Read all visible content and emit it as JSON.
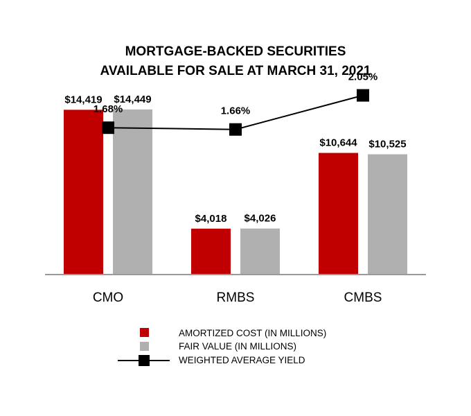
{
  "chart_data": {
    "type": "bar",
    "title": [
      "MORTGAGE-BACKED SECURITIES",
      "AVAILABLE FOR SALE AT MARCH 31, 2021"
    ],
    "categories": [
      "CMO",
      "RMBS",
      "CMBS"
    ],
    "series": [
      {
        "name": "AMORTIZED COST (IN MILLIONS)",
        "values": [
          14419,
          4018,
          10644
        ],
        "labels": [
          "$14,419",
          "$4,018",
          "$10,644"
        ],
        "color": "#c00000",
        "kind": "bar"
      },
      {
        "name": "FAIR VALUE (IN MILLIONS)",
        "values": [
          14449,
          4026,
          10525
        ],
        "labels": [
          "$14,449",
          "$4,026",
          "$10,525"
        ],
        "color": "#b0b0b0",
        "kind": "bar"
      },
      {
        "name": "WEIGHTED AVERAGE YIELD",
        "values": [
          1.68,
          1.66,
          2.05
        ],
        "labels": [
          "1.68%",
          "1.66%",
          "2.05%"
        ],
        "color": "#000000",
        "kind": "line"
      }
    ],
    "bar_axis": {
      "min": 0,
      "max": 14500
    },
    "line_axis": {
      "min": 0,
      "max": 2.8
    },
    "legend_position": "bottom",
    "grid": false
  }
}
